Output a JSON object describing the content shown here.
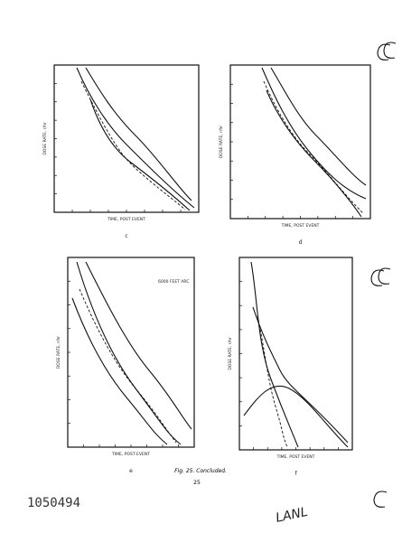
{
  "panels": [
    {
      "label": "c",
      "x_label": "TIME, POST EVENT",
      "y_label": "DOSE RATE, r/hr"
    },
    {
      "label": "d",
      "x_label": "TIME, POST EVENT",
      "y_label": "DOSE RATE, r/hr"
    },
    {
      "label": "e",
      "x_label": "TIME, POST EVENT",
      "y_label": "DOSE RATE, r/hr",
      "annotation": "6000 FEET ARC"
    },
    {
      "label": "f",
      "x_label": "TIME, POST EVENT",
      "y_label": "DOSE RATE, r/hr"
    }
  ],
  "caption": "Fig. 25. Concluded.",
  "page_number": "25",
  "document_number": "1050494",
  "stamp": "LANL"
}
